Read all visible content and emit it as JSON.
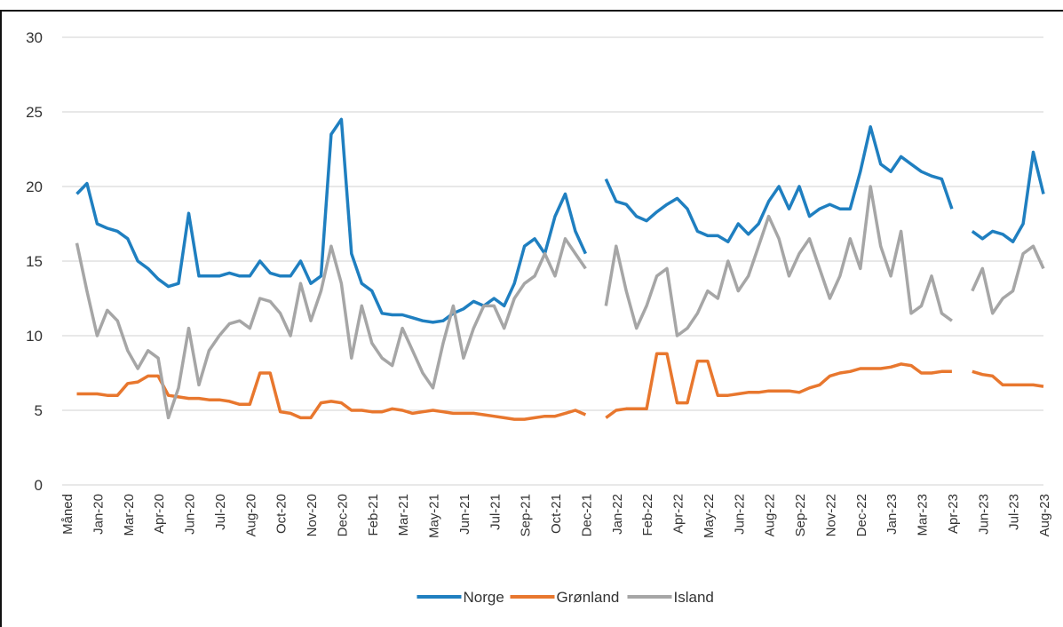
{
  "chart_data": {
    "type": "line",
    "categories": [
      "Måned",
      null,
      null,
      "Jan-20",
      null,
      null,
      "Mar-20",
      null,
      null,
      "Apr-20",
      null,
      null,
      "Jun-20",
      null,
      null,
      "Jul-20",
      null,
      null,
      "Aug-20",
      null,
      null,
      "Oct-20",
      null,
      null,
      "Nov-20",
      null,
      null,
      "Dec-20",
      null,
      null,
      "Feb-21",
      null,
      null,
      "Mar-21",
      null,
      null,
      "May-21",
      null,
      null,
      "Jun-21",
      null,
      null,
      "Jul-21",
      null,
      null,
      "Sep-21",
      null,
      null,
      "Oct-21",
      null,
      null,
      "Dec-21",
      null,
      null,
      "Jan-22",
      null,
      null,
      "Feb-22",
      null,
      null,
      "Apr-22",
      null,
      null,
      "May-22",
      null,
      null,
      "Jun-22",
      null,
      null,
      "Aug-22",
      null,
      null,
      "Sep-22",
      null,
      null,
      "Nov-22",
      null,
      null,
      "Dec-22",
      null,
      null,
      "Jan-23",
      null,
      null,
      "Mar-23",
      null,
      null,
      "Apr-23",
      null,
      null,
      "Jun-23",
      null,
      null,
      "Jul-23",
      null,
      null,
      "Aug-23"
    ],
    "series": [
      {
        "name": "Norge",
        "color": "#1f7fc0",
        "values": [
          null,
          19.5,
          20.2,
          17.5,
          17.2,
          17.0,
          16.5,
          15.0,
          14.5,
          13.8,
          13.3,
          13.5,
          18.2,
          14.0,
          14.0,
          14.0,
          14.2,
          14.0,
          14.0,
          15.0,
          14.2,
          14.0,
          14.0,
          15.0,
          13.5,
          14.0,
          23.5,
          24.5,
          15.5,
          13.5,
          13.0,
          11.5,
          11.4,
          11.4,
          11.2,
          11.0,
          10.9,
          11.0,
          11.5,
          11.8,
          12.3,
          12.0,
          12.5,
          12.0,
          13.5,
          16.0,
          16.5,
          15.5,
          18.0,
          19.5,
          17.0,
          15.5,
          null,
          20.5,
          19.0,
          18.8,
          18.0,
          17.7,
          18.3,
          18.8,
          19.2,
          18.5,
          17.0,
          16.7,
          16.7,
          16.3,
          17.5,
          16.8,
          17.5,
          19.0,
          20.0,
          18.5,
          20.0,
          18.0,
          18.5,
          18.8,
          18.5,
          18.5,
          21.0,
          24.0,
          21.5,
          21.0,
          22.0,
          21.5,
          21.0,
          20.7,
          20.5,
          18.5,
          null,
          17.0,
          16.5,
          17.0,
          16.8,
          16.3,
          17.5,
          22.3,
          19.5
        ]
      },
      {
        "name": "Grønland",
        "color": "#e8772e",
        "values": [
          null,
          6.1,
          6.1,
          6.1,
          6.0,
          6.0,
          6.8,
          6.9,
          7.3,
          7.3,
          6.0,
          5.9,
          5.8,
          5.8,
          5.7,
          5.7,
          5.6,
          5.4,
          5.4,
          7.5,
          7.5,
          4.9,
          4.8,
          4.5,
          4.5,
          5.5,
          5.6,
          5.5,
          5.0,
          5.0,
          4.9,
          4.9,
          5.1,
          5.0,
          4.8,
          4.9,
          5.0,
          4.9,
          4.8,
          4.8,
          4.8,
          4.7,
          4.6,
          4.5,
          4.4,
          4.4,
          4.5,
          4.6,
          4.6,
          4.8,
          5.0,
          4.7,
          null,
          4.5,
          5.0,
          5.1,
          5.1,
          5.1,
          8.8,
          8.8,
          5.5,
          5.5,
          8.3,
          8.3,
          6.0,
          6.0,
          6.1,
          6.2,
          6.2,
          6.3,
          6.3,
          6.3,
          6.2,
          6.5,
          6.7,
          7.3,
          7.5,
          7.6,
          7.8,
          7.8,
          7.8,
          7.9,
          8.1,
          8.0,
          7.5,
          7.5,
          7.6,
          7.6,
          null,
          7.6,
          7.4,
          7.3,
          6.7,
          6.7,
          6.7,
          6.7,
          6.6
        ]
      },
      {
        "name": "Island",
        "color": "#a6a6a6",
        "values": [
          null,
          16.2,
          13.0,
          10.0,
          11.7,
          11.0,
          9.0,
          7.8,
          9.0,
          8.5,
          4.5,
          6.5,
          10.5,
          6.7,
          9.0,
          10.0,
          10.8,
          11.0,
          10.5,
          12.5,
          12.3,
          11.5,
          10.0,
          13.5,
          11.0,
          13.0,
          16.0,
          13.5,
          8.5,
          12.0,
          9.5,
          8.5,
          8.0,
          10.5,
          9.0,
          7.5,
          6.5,
          9.5,
          12.0,
          8.5,
          10.5,
          12.0,
          12.0,
          10.5,
          12.5,
          13.5,
          14.0,
          15.5,
          14.0,
          16.5,
          15.5,
          14.5,
          null,
          12.0,
          16.0,
          13.0,
          10.5,
          12.0,
          14.0,
          14.5,
          10.0,
          10.5,
          11.5,
          13.0,
          12.5,
          15.0,
          13.0,
          14.0,
          16.0,
          18.0,
          16.5,
          14.0,
          15.5,
          16.5,
          14.5,
          12.5,
          14.0,
          16.5,
          14.5,
          20.0,
          16.0,
          14.0,
          17.0,
          11.5,
          12.0,
          14.0,
          11.5,
          11.0,
          null,
          13.0,
          14.5,
          11.5,
          12.5,
          13.0,
          15.5,
          16.0,
          14.5
        ]
      }
    ],
    "ylim": [
      0,
      30
    ],
    "yticks": [
      0,
      5,
      10,
      15,
      20,
      25,
      30
    ],
    "grid": true,
    "legend": "bottom"
  }
}
